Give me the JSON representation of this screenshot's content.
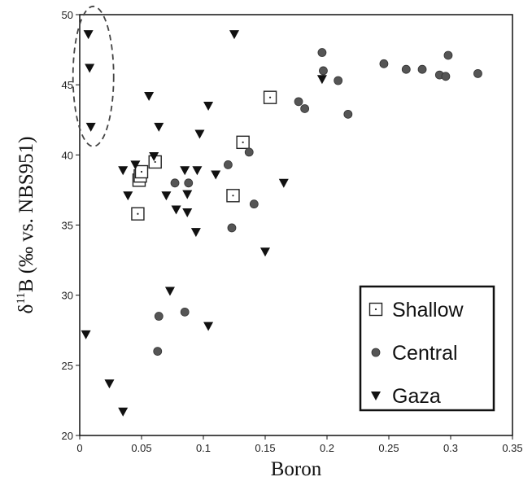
{
  "chart_data": {
    "type": "scatter",
    "xlabel": "Boron",
    "ylabel_parts": {
      "delta": "δ",
      "superscript": "11",
      "rest": "B (‰ vs. NBS951)"
    },
    "xlim": [
      0,
      0.35
    ],
    "ylim": [
      20,
      50
    ],
    "x_ticks": [
      "0",
      "0.05",
      "0.1",
      "0.15",
      "0.2",
      "0.25",
      "0.3",
      "0.35"
    ],
    "y_ticks": [
      "20",
      "25",
      "30",
      "35",
      "40",
      "45",
      "50"
    ],
    "grid": false,
    "legend_position": "bottom-right",
    "annotation": "dashed ellipse around high-δ11B low-boron Gaza points",
    "series": [
      {
        "name": "Shallow",
        "marker": "open-square",
        "points": [
          [
            0.047,
            35.8
          ],
          [
            0.048,
            38.2
          ],
          [
            0.049,
            38.5
          ],
          [
            0.05,
            38.8
          ],
          [
            0.061,
            39.5
          ],
          [
            0.124,
            37.1
          ],
          [
            0.132,
            40.9
          ],
          [
            0.154,
            44.1
          ]
        ]
      },
      {
        "name": "Central",
        "marker": "circle",
        "points": [
          [
            0.063,
            26.0
          ],
          [
            0.064,
            28.5
          ],
          [
            0.077,
            38.0
          ],
          [
            0.085,
            28.8
          ],
          [
            0.088,
            38.0
          ],
          [
            0.12,
            39.3
          ],
          [
            0.123,
            34.8
          ],
          [
            0.137,
            40.2
          ],
          [
            0.141,
            36.5
          ],
          [
            0.177,
            43.8
          ],
          [
            0.182,
            43.3
          ],
          [
            0.196,
            47.3
          ],
          [
            0.197,
            46.0
          ],
          [
            0.209,
            45.3
          ],
          [
            0.217,
            42.9
          ],
          [
            0.246,
            46.5
          ],
          [
            0.264,
            46.1
          ],
          [
            0.277,
            46.1
          ],
          [
            0.291,
            45.7
          ],
          [
            0.296,
            45.6
          ],
          [
            0.298,
            47.1
          ],
          [
            0.322,
            45.8
          ]
        ]
      },
      {
        "name": "Gaza",
        "marker": "triangle-down",
        "points": [
          [
            0.007,
            48.6
          ],
          [
            0.008,
            46.2
          ],
          [
            0.009,
            42.0
          ],
          [
            0.005,
            27.2
          ],
          [
            0.024,
            23.7
          ],
          [
            0.035,
            21.7
          ],
          [
            0.035,
            38.9
          ],
          [
            0.039,
            37.1
          ],
          [
            0.045,
            39.3
          ],
          [
            0.056,
            44.2
          ],
          [
            0.06,
            39.9
          ],
          [
            0.064,
            42.0
          ],
          [
            0.07,
            37.1
          ],
          [
            0.073,
            30.3
          ],
          [
            0.078,
            36.1
          ],
          [
            0.085,
            38.9
          ],
          [
            0.087,
            37.2
          ],
          [
            0.087,
            35.9
          ],
          [
            0.094,
            34.5
          ],
          [
            0.095,
            38.9
          ],
          [
            0.097,
            41.5
          ],
          [
            0.104,
            43.5
          ],
          [
            0.104,
            27.8
          ],
          [
            0.11,
            38.6
          ],
          [
            0.125,
            48.6
          ],
          [
            0.15,
            33.1
          ],
          [
            0.165,
            38.0
          ],
          [
            0.196,
            45.4
          ]
        ]
      }
    ]
  }
}
